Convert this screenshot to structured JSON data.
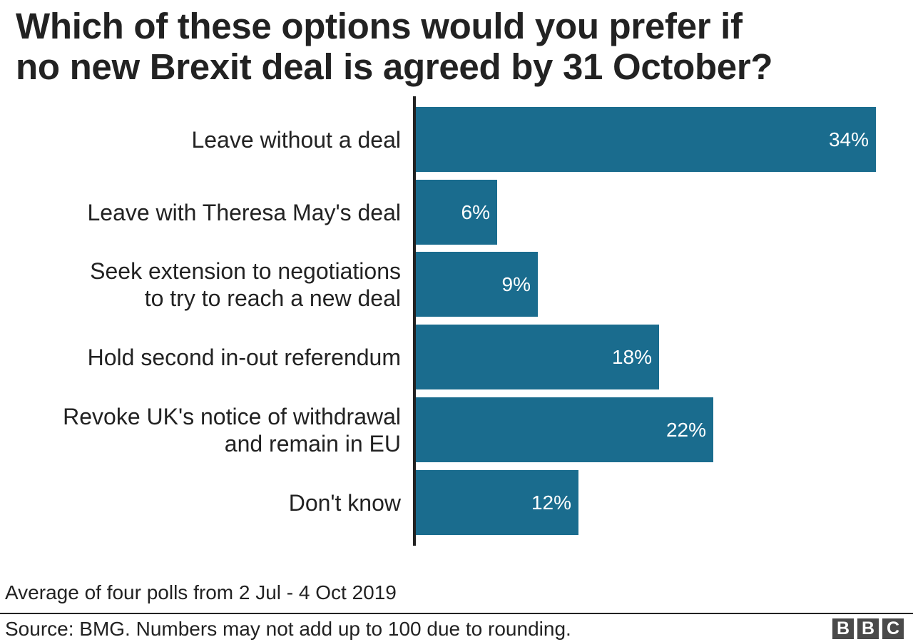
{
  "title": {
    "line1": "Which of these options would you prefer if",
    "line2": "no new Brexit deal is agreed by 31 October?"
  },
  "colors": {
    "bar": "#1a6c8e",
    "text": "#222222",
    "bar_label": "#ffffff",
    "logo": "#4a4a4a"
  },
  "rows": [
    {
      "label_lines": [
        "Leave without a deal"
      ],
      "value": 34,
      "value_label": "34%"
    },
    {
      "label_lines": [
        "Leave with Theresa May's deal"
      ],
      "value": 6,
      "value_label": "6%"
    },
    {
      "label_lines": [
        "Seek extension to negotiations",
        "to try to reach a new deal"
      ],
      "value": 9,
      "value_label": "9%"
    },
    {
      "label_lines": [
        "Hold second in-out referendum"
      ],
      "value": 18,
      "value_label": "18%"
    },
    {
      "label_lines": [
        "Revoke UK's notice of withdrawal",
        "and remain in EU"
      ],
      "value": 22,
      "value_label": "22%"
    },
    {
      "label_lines": [
        "Don't know"
      ],
      "value": 12,
      "value_label": "12%"
    }
  ],
  "footer": {
    "note": "Average of four polls from 2 Jul - 4 Oct 2019",
    "source": "Source: BMG. Numbers may not add up to 100 due to rounding.",
    "logo_letters": [
      "B",
      "B",
      "C"
    ]
  },
  "chart_data": {
    "type": "bar",
    "orientation": "horizontal",
    "title": "Which of these options would you prefer if no new Brexit deal is agreed by 31 October?",
    "categories": [
      "Leave without a deal",
      "Leave with Theresa May's deal",
      "Seek extension to negotiations to try to reach a new deal",
      "Hold second in-out referendum",
      "Revoke UK's notice of withdrawal and remain in EU",
      "Don't know"
    ],
    "values": [
      34,
      6,
      9,
      18,
      22,
      12
    ],
    "unit": "%",
    "xlabel": "",
    "ylabel": "",
    "grid": false,
    "legend": null,
    "subtitle": "Average of four polls from 2 Jul - 4 Oct 2019",
    "source": "Source: BMG. Numbers may not add up to 100 due to rounding."
  }
}
